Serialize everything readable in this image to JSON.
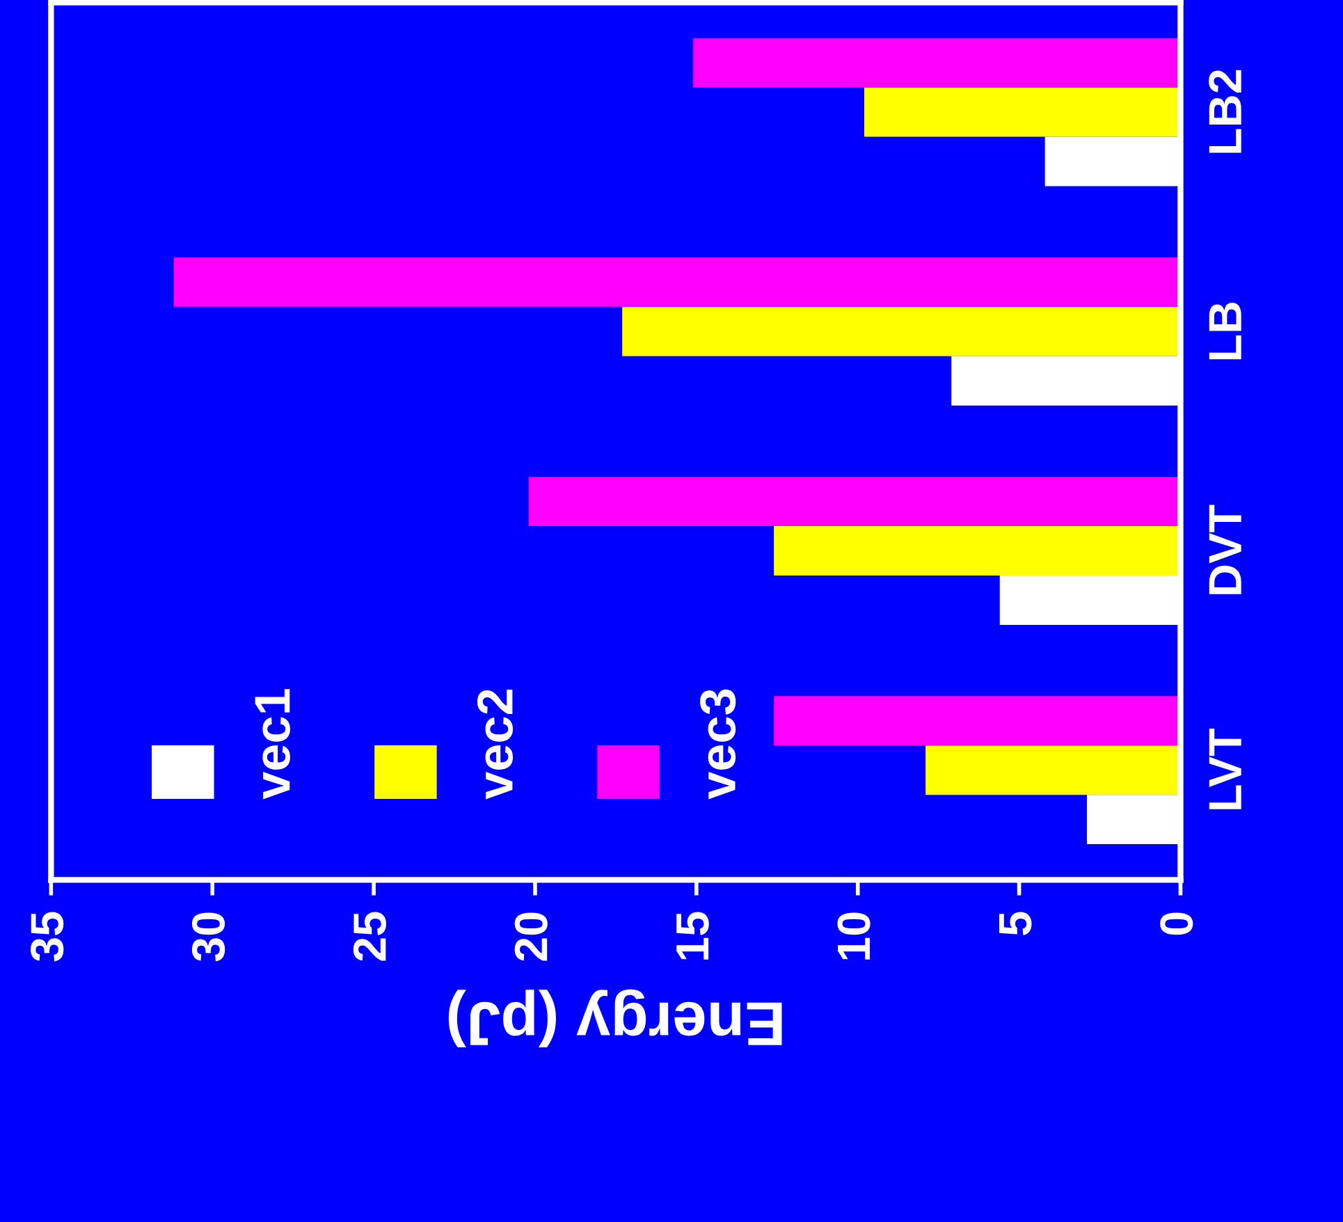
{
  "chart_data": {
    "type": "bar",
    "orientation": "horizontal",
    "ylabel": null,
    "xlabel": "Energy (pJ)",
    "categories": [
      "LB2",
      "LB",
      "DVT",
      "LVT"
    ],
    "series": [
      {
        "name": "vec1",
        "color": "#ffffff",
        "values": [
          4.2,
          7.1,
          5.6,
          2.9
        ]
      },
      {
        "name": "vec2",
        "color": "#ffff00",
        "values": [
          9.8,
          17.3,
          12.6,
          7.9
        ]
      },
      {
        "name": "vec3",
        "color": "#ff00ff",
        "values": [
          15.1,
          31.2,
          20.2,
          12.6
        ]
      }
    ],
    "xlim": [
      35,
      0
    ],
    "xticks": [
      35,
      30,
      25,
      20,
      15,
      10,
      5,
      0
    ],
    "grid": false,
    "legend": "bottom left"
  }
}
